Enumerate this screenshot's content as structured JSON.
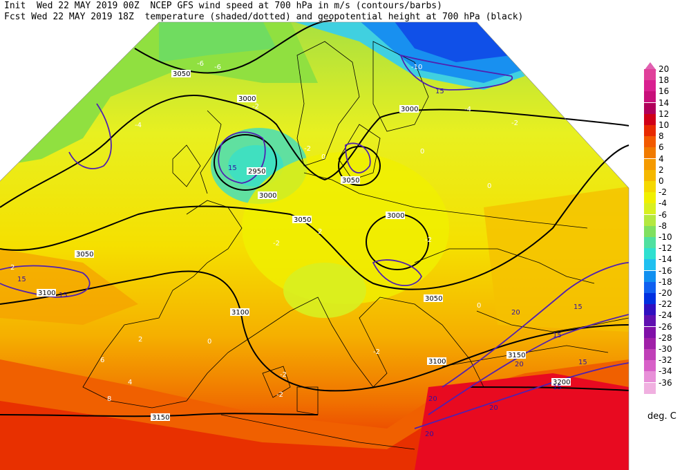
{
  "header": {
    "line1": "Init  Wed 22 MAY 2019 00Z  NCEP GFS wind speed at 700 hPa in m/s (contours/barbs)",
    "line2": "Fcst Wed 22 MAY 2019 18Z  temperature (shaded/dotted) and geopotential height at 700 hPa (black)"
  },
  "colorbar": {
    "levels": [
      "20",
      "18",
      "16",
      "14",
      "12",
      "10",
      "8",
      "6",
      "4",
      "2",
      "0",
      "-2",
      "-4",
      "-6",
      "-8",
      "-10",
      "-12",
      "-14",
      "-16",
      "-18",
      "-20",
      "-22",
      "-24",
      "-26",
      "-28",
      "-30",
      "-32",
      "-34",
      "-36"
    ],
    "colors": [
      "#e0409a",
      "#d92090",
      "#c8107a",
      "#b0005a",
      "#d00018",
      "#e82a00",
      "#f25a00",
      "#f07a00",
      "#f59a00",
      "#f5b800",
      "#f5d800",
      "#f0f000",
      "#d8f020",
      "#b4e840",
      "#80e060",
      "#50e0a0",
      "#30e0d0",
      "#20c0f0",
      "#1090f0",
      "#1060f0",
      "#0030e0",
      "#3010c0",
      "#6010b0",
      "#8010a8",
      "#a020a8",
      "#c040b8",
      "#d860c8",
      "#e890d8",
      "#f0b0e0"
    ],
    "units": "deg. C"
  },
  "map": {
    "height_labels": [
      "3050",
      "3000",
      "2950",
      "3000",
      "3050",
      "3000",
      "3050",
      "3050",
      "3000",
      "3100",
      "3050",
      "3100",
      "3100",
      "3150",
      "3150",
      "3200"
    ],
    "wind_labels": [
      "15",
      "15",
      "15",
      "15",
      "15",
      "20",
      "15",
      "20",
      "20",
      "15",
      "20",
      "20",
      "15"
    ],
    "temp_labels": [
      "-6",
      "-6",
      "-4",
      "-2",
      "-2",
      "0",
      "-2",
      "-2",
      "2",
      "0",
      "0",
      "2",
      "0",
      "-2",
      "0",
      "2",
      "4",
      "6",
      "8",
      "-2",
      "-2",
      "-10",
      "-4",
      "-2"
    ]
  }
}
